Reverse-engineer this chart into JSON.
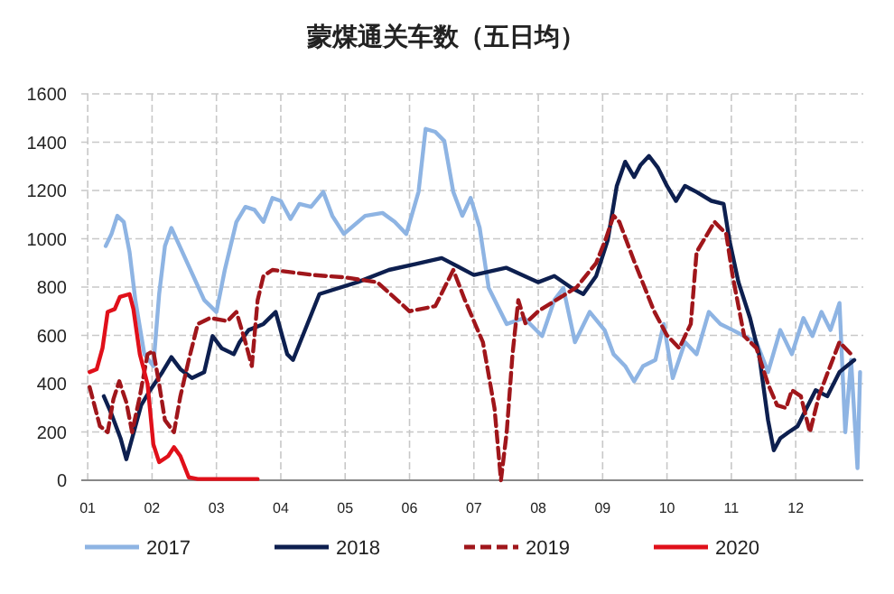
{
  "chart_data": {
    "type": "line",
    "title": "蒙煤通关车数（五日均）",
    "xlim": [
      0.9,
      13.05
    ],
    "ylim": [
      0,
      1600
    ],
    "yticks": [
      0,
      200,
      400,
      600,
      800,
      1000,
      1200,
      1400,
      1600
    ],
    "xticks": [
      {
        "value": 1,
        "label": "01"
      },
      {
        "value": 2,
        "label": "02"
      },
      {
        "value": 3,
        "label": "03"
      },
      {
        "value": 4,
        "label": "04"
      },
      {
        "value": 5,
        "label": "05"
      },
      {
        "value": 6,
        "label": "06"
      },
      {
        "value": 7,
        "label": "07"
      },
      {
        "value": 8,
        "label": "08"
      },
      {
        "value": 9,
        "label": "09"
      },
      {
        "value": 10,
        "label": "10"
      },
      {
        "value": 11,
        "label": "11"
      },
      {
        "value": 12,
        "label": "12"
      }
    ],
    "grid": true,
    "legend": "bottom",
    "marker": "none",
    "series": [
      {
        "name": "2017",
        "color": "#8eb4e3",
        "x": [
          1.28,
          1.37,
          1.46,
          1.56,
          1.65,
          1.74,
          1.88,
          2.02,
          2.11,
          2.2,
          2.3,
          2.81,
          3.0,
          3.13,
          3.31,
          3.45,
          3.59,
          3.73,
          3.87,
          4.0,
          4.15,
          4.29,
          4.47,
          4.66,
          4.8,
          4.98,
          5.31,
          5.58,
          5.77,
          5.95,
          6.14,
          6.25,
          6.4,
          6.54,
          6.68,
          6.82,
          6.95,
          7.09,
          7.23,
          7.51,
          7.78,
          8.06,
          8.25,
          8.39,
          8.57,
          8.8,
          9.03,
          9.17,
          9.35,
          9.49,
          9.63,
          9.82,
          9.95,
          10.09,
          10.28,
          10.46,
          10.65,
          10.83,
          11.02,
          11.2,
          11.39,
          11.57,
          11.76,
          11.94,
          12.12,
          12.26,
          12.4,
          12.54,
          12.68,
          12.77,
          12.86,
          12.96,
          13.0
        ],
        "values": [
          970,
          1020,
          1095,
          1070,
          945,
          746,
          522,
          473,
          771,
          970,
          1045,
          746,
          697,
          871,
          1070,
          1132,
          1120,
          1070,
          1169,
          1157,
          1082,
          1144,
          1132,
          1194,
          1095,
          1020,
          1095,
          1107,
          1070,
          1020,
          1194,
          1455,
          1443,
          1405,
          1194,
          1095,
          1169,
          1045,
          796,
          647,
          672,
          597,
          746,
          796,
          572,
          697,
          622,
          522,
          473,
          410,
          473,
          498,
          647,
          423,
          572,
          522,
          697,
          647,
          622,
          597,
          572,
          448,
          622,
          522,
          672,
          597,
          697,
          622,
          734,
          199,
          498,
          50,
          448
        ]
      },
      {
        "name": "2018",
        "color": "#0d1f4f",
        "x": [
          1.25,
          1.37,
          1.51,
          1.6,
          1.69,
          1.83,
          1.97,
          2.16,
          2.3,
          2.44,
          2.62,
          2.81,
          2.94,
          3.08,
          3.27,
          3.36,
          3.5,
          3.73,
          3.92,
          4.1,
          4.19,
          4.6,
          5.2,
          5.68,
          6.1,
          6.5,
          7.0,
          7.5,
          8.0,
          8.25,
          8.52,
          8.7,
          8.9,
          9.08,
          9.22,
          9.35,
          9.49,
          9.59,
          9.72,
          9.86,
          10.0,
          10.14,
          10.28,
          10.46,
          10.69,
          10.88,
          10.97,
          11.11,
          11.29,
          11.43,
          11.57,
          11.66,
          11.76,
          11.89,
          12.03,
          12.17,
          12.31,
          12.49,
          12.68,
          12.91
        ],
        "values": [
          348,
          274,
          174,
          87,
          174,
          311,
          373,
          448,
          510,
          460,
          423,
          448,
          597,
          547,
          522,
          572,
          622,
          647,
          697,
          522,
          498,
          771,
          821,
          871,
          896,
          920,
          850,
          880,
          820,
          846,
          796,
          771,
          846,
          995,
          1219,
          1319,
          1256,
          1306,
          1343,
          1294,
          1219,
          1157,
          1219,
          1194,
          1157,
          1144,
          995,
          821,
          672,
          522,
          249,
          124,
          174,
          199,
          224,
          299,
          373,
          348,
          448,
          498
        ]
      },
      {
        "name": "2019",
        "color": "#a0161b",
        "line_style": "dashed",
        "x": [
          1.03,
          1.19,
          1.31,
          1.4,
          1.49,
          1.6,
          1.69,
          1.81,
          1.93,
          2.02,
          2.11,
          2.2,
          2.34,
          2.44,
          2.57,
          2.71,
          2.9,
          3.17,
          3.31,
          3.45,
          3.55,
          3.64,
          3.73,
          3.87,
          4.5,
          5.0,
          5.5,
          6.0,
          6.4,
          6.68,
          6.86,
          7.14,
          7.32,
          7.42,
          7.51,
          7.6,
          7.69,
          7.8,
          8.0,
          8.3,
          8.6,
          8.9,
          9.05,
          9.17,
          9.26,
          9.5,
          9.8,
          10.0,
          10.19,
          10.37,
          10.46,
          10.74,
          10.92,
          11.02,
          11.2,
          11.39,
          11.57,
          11.71,
          11.85,
          11.94,
          12.08,
          12.22,
          12.36,
          12.5,
          12.68,
          12.86
        ],
        "values": [
          386,
          224,
          199,
          336,
          410,
          323,
          199,
          348,
          522,
          535,
          398,
          249,
          199,
          348,
          498,
          647,
          672,
          659,
          697,
          572,
          473,
          746,
          846,
          871,
          850,
          840,
          820,
          700,
          721,
          871,
          746,
          572,
          299,
          0,
          199,
          522,
          746,
          650,
          700,
          750,
          800,
          900,
          1000,
          1095,
          1070,
          900,
          700,
          600,
          547,
          647,
          945,
          1070,
          1020,
          846,
          597,
          547,
          398,
          311,
          299,
          373,
          348,
          199,
          348,
          448,
          572,
          522
        ]
      },
      {
        "name": "2020",
        "color": "#e0101a",
        "x": [
          1.03,
          1.14,
          1.23,
          1.31,
          1.42,
          1.5,
          1.65,
          1.71,
          1.81,
          1.93,
          2.02,
          2.11,
          2.25,
          2.34,
          2.44,
          2.57,
          2.71,
          3.64
        ],
        "values": [
          448,
          460,
          547,
          697,
          709,
          759,
          771,
          709,
          522,
          398,
          149,
          75,
          100,
          137,
          100,
          12,
          5,
          5
        ]
      }
    ]
  }
}
